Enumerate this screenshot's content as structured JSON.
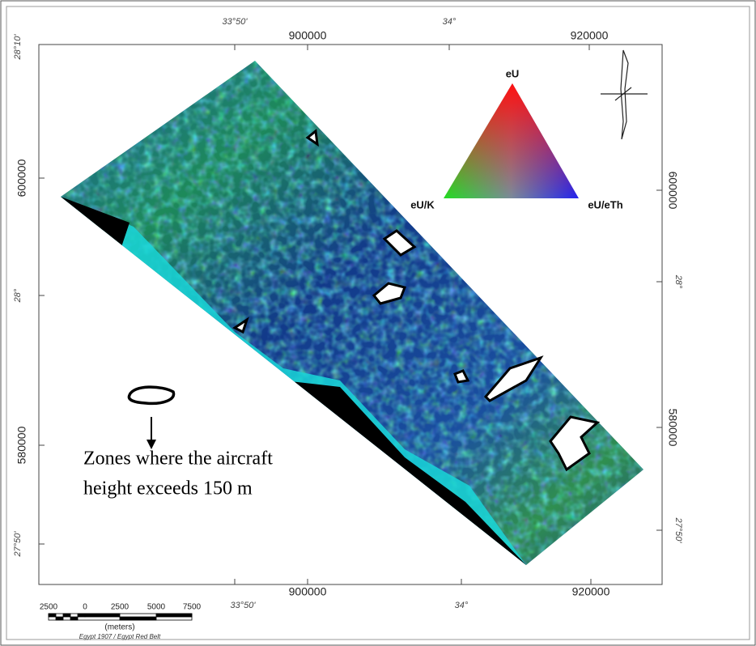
{
  "map": {
    "top_labels": [
      "33°50'",
      "900000",
      "34°",
      "920000"
    ],
    "left_labels": [
      "28°10'",
      "600000",
      "28°",
      "580000",
      "27°50'"
    ],
    "right_labels": [
      "600000",
      "28°",
      "580000",
      "27°50'"
    ],
    "bottom_labels": [
      "900000",
      "33°50'",
      "34°",
      "920000"
    ],
    "ternary": {
      "top": "eU",
      "left": "eU/K",
      "right": "eU/eTh"
    },
    "legend": {
      "lines": [
        "Zones where the aircraft",
        "height exceeds 150 m"
      ]
    },
    "scale_bar": {
      "ticks": [
        "2500",
        "0",
        "2500",
        "5000",
        "7500"
      ],
      "unit": "(meters)",
      "datum": "Egypt 1907 / Egypt Red Belt"
    }
  }
}
